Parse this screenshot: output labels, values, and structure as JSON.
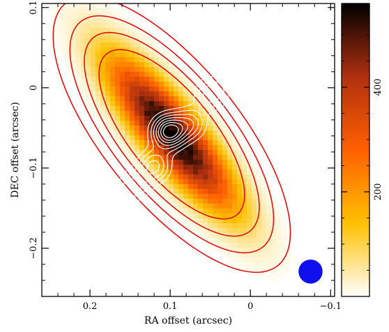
{
  "chart_data": {
    "type": "heatmap",
    "title": "",
    "xlabel": "RA offset (arcsec)",
    "ylabel": "DEC offset (arcsec)",
    "xlim": [
      0.26,
      -0.105
    ],
    "ylim": [
      -0.26,
      0.105
    ],
    "x_ticks": [
      0.2,
      0.1,
      0,
      -0.1
    ],
    "x_tick_labels": [
      "0.2",
      "0.1",
      "0",
      "−0.1"
    ],
    "y_ticks": [
      0.1,
      0,
      -0.1,
      -0.2
    ],
    "y_tick_labels": [
      "0.1",
      "0",
      "−0.1",
      "−0.2"
    ],
    "colorbar": {
      "range": [
        0,
        560
      ],
      "ticks": [
        200,
        400
      ],
      "tick_labels": [
        "200",
        "400"
      ],
      "colors": [
        "#ffffff",
        "#ffc000",
        "#ff6000",
        "#b03010",
        "#000000"
      ]
    },
    "image_model": {
      "center": [
        0.098,
        -0.058
      ],
      "position_angle_deg": 39,
      "length_arcsec": 0.26,
      "width_arcsec": 0.075,
      "peak": 560
    },
    "red_contours": {
      "color": "#dd1111",
      "levels_fraction": [
        0.05,
        0.15,
        0.3,
        0.5
      ]
    },
    "white_contours": {
      "color": "#ffffff",
      "peaks": [
        {
          "x": 0.102,
          "y": -0.055,
          "amp": 1.0
        },
        {
          "x": 0.12,
          "y": -0.098,
          "amp": 0.6
        },
        {
          "x": 0.048,
          "y": -0.007,
          "amp": 0.55
        },
        {
          "x": 0.145,
          "y": -0.122,
          "amp": 0.45
        },
        {
          "x": 0.075,
          "y": -0.045,
          "amp": 0.5
        }
      ],
      "levels": [
        0.18,
        0.3,
        0.42,
        0.55,
        0.68,
        0.8,
        0.92
      ]
    },
    "beam": {
      "ra": -0.075,
      "dec": -0.229,
      "diameter_arcsec": 0.03,
      "color": "#1010ee"
    }
  }
}
